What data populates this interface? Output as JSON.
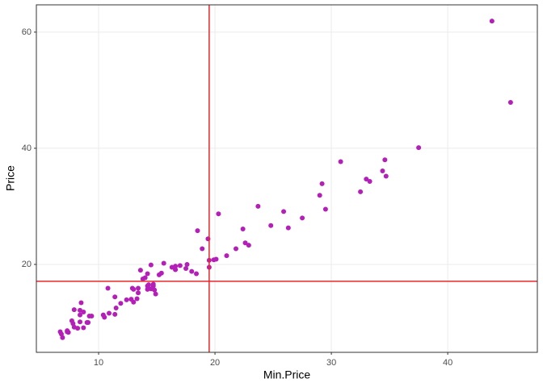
{
  "chart_data": {
    "type": "scatter",
    "x_label": "Min.Price",
    "y_label": "Price",
    "color": "#b41fb8",
    "line_color": "#e8262b",
    "grid": true,
    "xlim": [
      4.65,
      47.7
    ],
    "ylim": [
      4.86,
      64.7
    ],
    "xticks": [
      10,
      20,
      30,
      40
    ],
    "yticks": [
      20,
      40,
      60
    ],
    "vline": 19.5,
    "hline": 17.1,
    "x": [
      12.9,
      29.2,
      25.9,
      30.8,
      23.7,
      14.2,
      19.9,
      22.6,
      26.3,
      33.0,
      37.5,
      8.5,
      11.4,
      13.4,
      13.4,
      14.7,
      14.7,
      18.0,
      34.6,
      18.4,
      14.5,
      29.5,
      7.9,
      8.4,
      11.9,
      13.6,
      14.8,
      18.5,
      7.9,
      17.5,
      6.9,
      8.4,
      10.4,
      10.8,
      12.8,
      14.5,
      15.6,
      20.1,
      6.7,
      11.5,
      17.0,
      8.4,
      13.8,
      6.8,
      9.0,
      9.1,
      12.4,
      45.4,
      27.5,
      34.7,
      33.3,
      34.4,
      7.4,
      10.9,
      14.3,
      16.6,
      32.5,
      29.0,
      43.8,
      13.3,
      14.9,
      7.7,
      22.4,
      8.7,
      13.0,
      16.6,
      21.0,
      13.0,
      14.2,
      19.5,
      19.5,
      11.4,
      8.2,
      9.4,
      14.0,
      15.4,
      19.4,
      20.3,
      9.2,
      7.3,
      10.5,
      16.3,
      7.3,
      7.8,
      14.2,
      15.2,
      18.9,
      8.7,
      16.6,
      17.6,
      22.9,
      21.8,
      24.8
    ],
    "values": [
      15.9,
      33.9,
      29.1,
      37.7,
      30.0,
      15.7,
      20.8,
      23.7,
      26.3,
      34.7,
      40.1,
      13.4,
      11.4,
      15.1,
      15.9,
      16.3,
      16.6,
      18.8,
      38.0,
      18.4,
      15.8,
      29.5,
      9.2,
      11.3,
      13.3,
      19.0,
      15.6,
      25.8,
      12.2,
      19.3,
      7.4,
      10.1,
      11.3,
      15.9,
      14.0,
      19.9,
      20.2,
      20.9,
      8.4,
      12.5,
      19.8,
      12.1,
      17.5,
      8.0,
      10.0,
      10.0,
      13.9,
      47.9,
      28.0,
      35.2,
      34.3,
      36.1,
      8.3,
      11.6,
      16.5,
      19.1,
      32.5,
      31.9,
      61.9,
      14.1,
      14.9,
      10.3,
      26.1,
      11.8,
      15.7,
      19.1,
      21.5,
      13.5,
      16.3,
      19.5,
      20.7,
      14.4,
      9.0,
      11.1,
      17.7,
      18.5,
      24.4,
      28.7,
      11.1,
      8.4,
      10.9,
      19.5,
      8.6,
      9.8,
      18.4,
      18.2,
      22.7,
      9.1,
      19.7,
      20.0,
      23.3,
      22.7,
      26.7
    ]
  }
}
